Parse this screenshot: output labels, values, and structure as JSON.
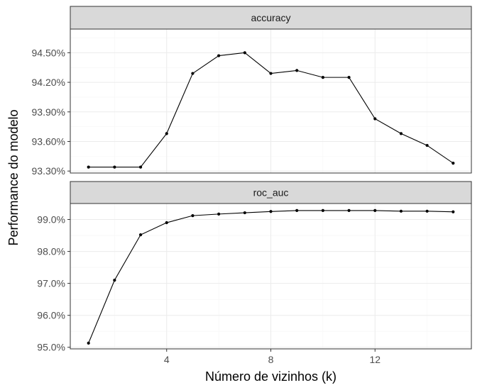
{
  "chart_data": {
    "type": "line",
    "xlabel": "Número de vizinhos (k)",
    "ylabel": "Performance do modelo",
    "x_ticks": [
      4,
      8,
      12
    ],
    "xlim": [
      0.3,
      15.7
    ],
    "x": [
      1,
      2,
      3,
      4,
      5,
      6,
      7,
      8,
      9,
      10,
      11,
      12,
      13,
      14,
      15
    ],
    "facets": [
      {
        "name": "accuracy",
        "ylim": [
          93.28,
          94.74
        ],
        "y_ticks": [
          93.3,
          94.5
        ],
        "y_tick_values": [
          93.3,
          93.6,
          93.9,
          94.2,
          94.5
        ],
        "y_tick_labels": [
          "93.30%",
          "93.60%",
          "93.90%",
          "94.20%",
          "94.50%"
        ],
        "values": [
          93.34,
          93.34,
          93.34,
          93.68,
          94.29,
          94.47,
          94.5,
          94.29,
          94.32,
          94.25,
          94.25,
          93.83,
          93.68,
          93.56,
          93.38
        ]
      },
      {
        "name": "roc_auc",
        "ylim": [
          94.95,
          99.5
        ],
        "y_tick_values": [
          95,
          96,
          97,
          98,
          99
        ],
        "y_tick_labels": [
          "95.0%",
          "96.0%",
          "97.0%",
          "98.0%",
          "99.0%"
        ],
        "values": [
          95.13,
          97.1,
          98.52,
          98.9,
          99.12,
          99.17,
          99.21,
          99.25,
          99.28,
          99.28,
          99.28,
          99.28,
          99.26,
          99.26,
          99.24
        ]
      }
    ]
  }
}
